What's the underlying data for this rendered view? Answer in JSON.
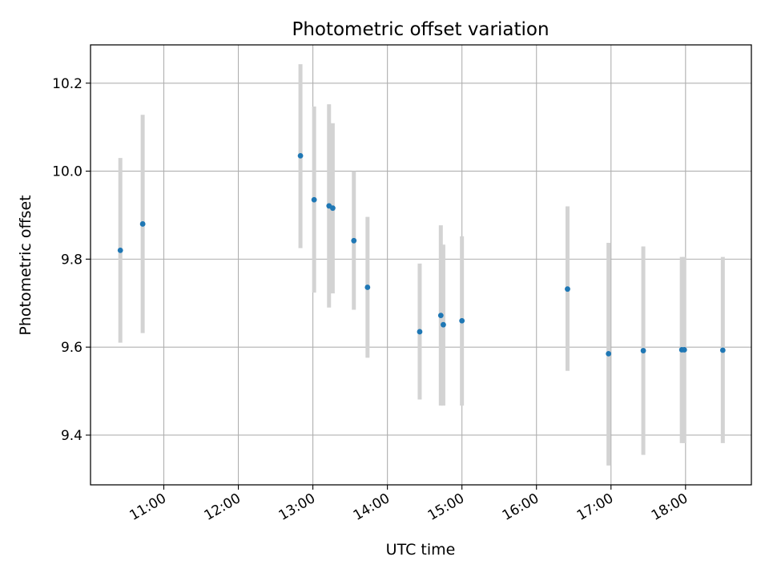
{
  "chart_data": {
    "type": "scatter",
    "title": "Photometric offset variation",
    "xlabel": "UTC time",
    "ylabel": "Photometric offset",
    "x_is_time": true,
    "xlim": [
      "10:01",
      "18:53"
    ],
    "ylim": [
      9.287,
      10.287
    ],
    "xticks": [
      "11:00",
      "12:00",
      "13:00",
      "14:00",
      "15:00",
      "16:00",
      "17:00",
      "18:00"
    ],
    "yticks": [
      "9.4",
      "9.6",
      "9.8",
      "10.0",
      "10.2"
    ],
    "grid": true,
    "series": [
      {
        "x": [
          "10:25",
          "10:43",
          "12:50",
          "13:01",
          "13:13",
          "13:16",
          "13:33",
          "13:44",
          "14:26",
          "14:43",
          "14:45",
          "15:00",
          "16:25",
          "16:58",
          "17:26",
          "17:57",
          "17:59",
          "18:30"
        ],
        "y": [
          9.82,
          9.88,
          10.035,
          9.935,
          9.921,
          9.916,
          9.842,
          9.736,
          9.635,
          9.672,
          9.651,
          9.66,
          9.732,
          9.585,
          9.592,
          9.594,
          9.594,
          9.593
        ],
        "ylow": [
          9.61,
          9.632,
          9.825,
          9.724,
          9.69,
          9.722,
          9.685,
          9.576,
          9.481,
          9.467,
          9.467,
          9.467,
          9.546,
          9.331,
          9.355,
          9.382,
          9.382,
          9.382
        ],
        "yhigh": [
          10.03,
          10.128,
          10.243,
          10.147,
          10.152,
          10.109,
          10.0,
          9.896,
          9.79,
          9.877,
          9.833,
          9.852,
          9.92,
          9.837,
          9.829,
          9.805,
          9.805,
          9.805
        ]
      }
    ],
    "colors": {
      "marker": "#1f77b4",
      "errorbar": "#d3d3d3",
      "grid": "#b0b0b0",
      "axes": "#000000"
    }
  }
}
